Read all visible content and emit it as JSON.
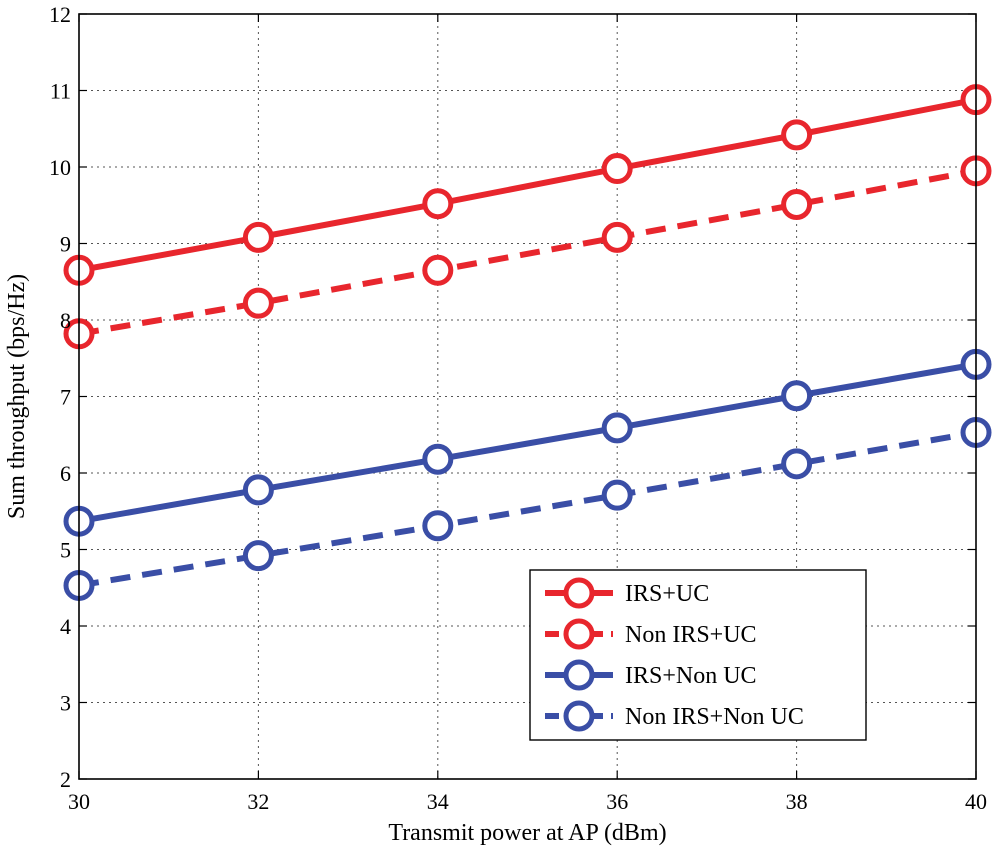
{
  "chart_data": {
    "type": "line",
    "title": "",
    "xlabel": "Transmit power at AP (dBm)",
    "ylabel": "Sum throughput (bps/Hz)",
    "xlim": [
      30,
      40
    ],
    "ylim": [
      2,
      12
    ],
    "xticks": [
      30,
      32,
      34,
      36,
      38,
      40
    ],
    "yticks": [
      2,
      3,
      4,
      5,
      6,
      7,
      8,
      9,
      10,
      11,
      12
    ],
    "grid": true,
    "legend_position": "lower-right",
    "x": [
      30,
      32,
      34,
      36,
      38,
      40
    ],
    "series": [
      {
        "name": "IRS+UC",
        "color": "#e8262d",
        "line_style": "solid",
        "marker": "circle",
        "values": [
          8.65,
          9.08,
          9.52,
          9.98,
          10.42,
          10.88
        ]
      },
      {
        "name": "Non IRS+UC",
        "color": "#e8262d",
        "line_style": "dashed",
        "marker": "circle",
        "values": [
          7.82,
          8.22,
          8.65,
          9.08,
          9.51,
          9.95
        ]
      },
      {
        "name": "IRS+Non UC",
        "color": "#3a4ea6",
        "line_style": "solid",
        "marker": "circle",
        "values": [
          5.37,
          5.78,
          6.18,
          6.59,
          7.01,
          7.42
        ]
      },
      {
        "name": "Non IRS+Non UC",
        "color": "#3a4ea6",
        "line_style": "dashed",
        "marker": "circle",
        "values": [
          4.53,
          4.92,
          5.31,
          5.71,
          6.12,
          6.53
        ]
      }
    ]
  }
}
